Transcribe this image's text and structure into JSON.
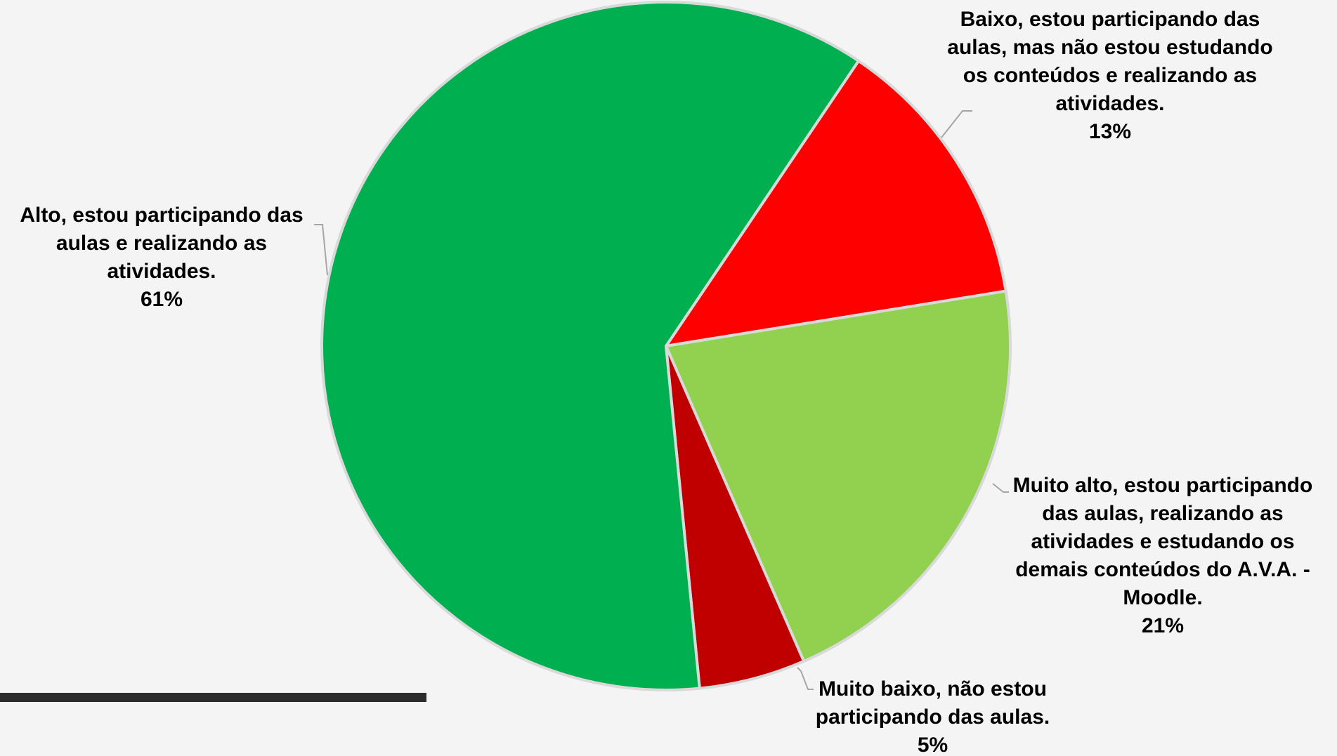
{
  "chart_data": {
    "type": "pie",
    "title": "",
    "slices": [
      {
        "label": "Baixo, estou participando das aulas, mas não estou estudando os conteúdos e realizando as atividades.",
        "value": 13,
        "display": "13%",
        "color": "#ff0000"
      },
      {
        "label": "Muito alto, estou participando das aulas, realizando as atividades e estudando os demais conteúdos do A.V.A. - Moodle.",
        "value": 21,
        "display": "21%",
        "color": "#92d050"
      },
      {
        "label": "Muito baixo, não estou participando das aulas.",
        "value": 5,
        "display": "5%",
        "color": "#c00000"
      },
      {
        "label": "Alto, estou participando das aulas e realizando as atividades.",
        "value": 61,
        "display": "61%",
        "color": "#00b050"
      }
    ]
  }
}
